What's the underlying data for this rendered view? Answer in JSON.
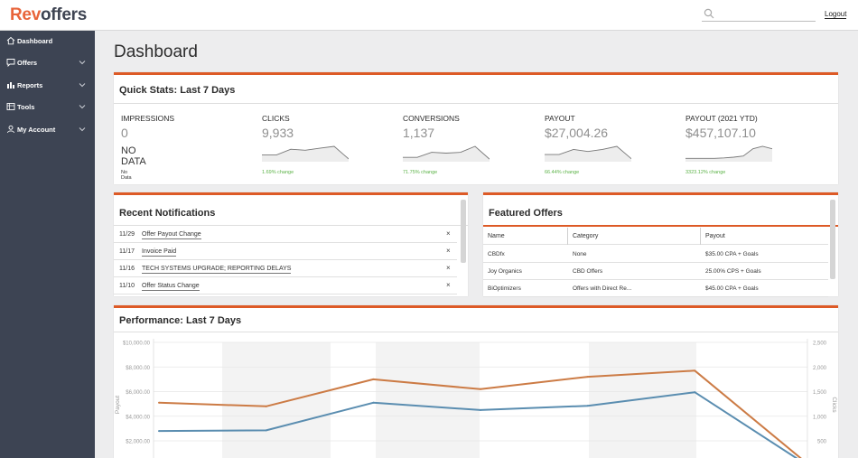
{
  "brand": {
    "part1": "Rev",
    "part2": "offers"
  },
  "header": {
    "search_placeholder": "",
    "logout_label": "Logout"
  },
  "sidebar": {
    "items": [
      {
        "label": "Dashboard",
        "icon": "home-icon",
        "has_chevron": false
      },
      {
        "label": "Offers",
        "icon": "chat-icon",
        "has_chevron": true
      },
      {
        "label": "Reports",
        "icon": "bar-chart-icon",
        "has_chevron": true
      },
      {
        "label": "Tools",
        "icon": "tools-icon",
        "has_chevron": true
      },
      {
        "label": "My Account",
        "icon": "user-icon",
        "has_chevron": true
      }
    ]
  },
  "page": {
    "title": "Dashboard"
  },
  "quick_stats": {
    "title": "Quick Stats: Last 7 Days",
    "stats": [
      {
        "label": "IMPRESSIONS",
        "value": "0",
        "note_big": "NO DATA",
        "note_small": "No Data",
        "change": "",
        "spark": []
      },
      {
        "label": "CLICKS",
        "value": "9,933",
        "change": "1.69% change",
        "spark": [
          3,
          3,
          6,
          5.5,
          6.5,
          7.5,
          1
        ]
      },
      {
        "label": "CONVERSIONS",
        "value": "1,137",
        "change": "71.75% change",
        "spark": [
          2,
          2,
          5,
          4.5,
          5,
          8.5,
          1
        ]
      },
      {
        "label": "PAYOUT",
        "value": "$27,004.26",
        "change": "66.44% change",
        "spark": [
          3,
          3,
          5.5,
          4.5,
          5.5,
          7,
          1
        ]
      },
      {
        "label": "PAYOUT (2021 YTD)",
        "value": "$457,107.10",
        "change": "3323.12% change",
        "spark": [
          1,
          1,
          1,
          1,
          1.2,
          1.5,
          2,
          5,
          6,
          5
        ]
      }
    ]
  },
  "notifications": {
    "title": "Recent Notifications",
    "items": [
      {
        "date": "11/29",
        "text": "Offer Payout Change"
      },
      {
        "date": "11/17",
        "text": "Invoice Paid"
      },
      {
        "date": "11/16",
        "text": "TECH SYSTEMS UPGRADE; REPORTING DELAYS"
      },
      {
        "date": "11/10",
        "text": "Offer Status Change"
      }
    ],
    "close_glyph": "×"
  },
  "featured_offers": {
    "title": "Featured Offers",
    "columns": [
      "Name",
      "Category",
      "Payout"
    ],
    "rows": [
      {
        "name": "CBDfx",
        "category": "None",
        "payout": "$35.00 CPA + Goals"
      },
      {
        "name": "Joy Organics",
        "category": "CBD Offers",
        "payout": "25.00%  CPS + Goals"
      },
      {
        "name": "BiOptimizers",
        "category": "Offers with Direct Re...",
        "payout": "$45.00 CPA + Goals"
      }
    ]
  },
  "performance": {
    "title": "Performance: Last 7 Days",
    "colors": {
      "payout": "#cc7b45",
      "clicks": "#5a8db0"
    }
  },
  "chart_data": {
    "type": "line",
    "title": "Performance: Last 7 Days",
    "ylabel": "Payout",
    "y2label": "Clicks",
    "yticks": [
      "$10,000.00",
      "$8,000.00",
      "$6,000.00",
      "$4,000.00",
      "$2,000.00"
    ],
    "y2ticks": [
      "2,500",
      "2,000",
      "1,500",
      "1,000",
      "500"
    ],
    "ylim": [
      0,
      10000
    ],
    "y2lim": [
      0,
      2500
    ],
    "series": [
      {
        "axis": "left",
        "values": [
          5100,
          4800,
          7000,
          6200,
          7200,
          7700,
          500
        ]
      },
      {
        "axis": "left",
        "values": [
          2800,
          2850,
          5100,
          4500,
          4850,
          5950,
          300
        ]
      }
    ]
  }
}
